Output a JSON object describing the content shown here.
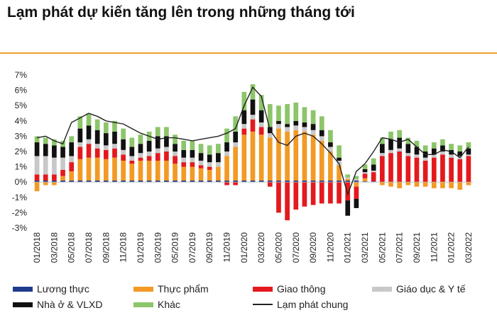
{
  "title": "Lạm phát dự kiến tăng lên trong những tháng tới",
  "accent": "#f0a030",
  "chart_data": {
    "type": "bar",
    "stacked": true,
    "ylim": [
      -3,
      7
    ],
    "yticks": [
      "-3%",
      "-2%",
      "-1%",
      "0%",
      "1%",
      "2%",
      "3%",
      "4%",
      "5%",
      "6%",
      "7%"
    ],
    "xtick_labels": [
      "01/2018",
      "03/2018",
      "05/2018",
      "07/2018",
      "09/2018",
      "11/2018",
      "01/2019",
      "03/2019",
      "05/2019",
      "07/2019",
      "09/2019",
      "11/2019",
      "01/2020",
      "03/2020",
      "05/2020",
      "07/2020",
      "09/2020",
      "11/2020",
      "01/2021",
      "03/2021",
      "05/2021",
      "07/2021",
      "09/2021",
      "11/2021",
      "01/2022",
      "03/2022"
    ],
    "categories": [
      "01/2018",
      "02/2018",
      "03/2018",
      "04/2018",
      "05/2018",
      "06/2018",
      "07/2018",
      "08/2018",
      "09/2018",
      "10/2018",
      "11/2018",
      "12/2018",
      "01/2019",
      "02/2019",
      "03/2019",
      "04/2019",
      "05/2019",
      "06/2019",
      "07/2019",
      "08/2019",
      "09/2019",
      "10/2019",
      "11/2019",
      "12/2019",
      "01/2020",
      "02/2020",
      "03/2020",
      "04/2020",
      "05/2020",
      "06/2020",
      "07/2020",
      "08/2020",
      "09/2020",
      "10/2020",
      "11/2020",
      "12/2020",
      "01/2021",
      "02/2021",
      "03/2021",
      "04/2021",
      "05/2021",
      "06/2021",
      "07/2021",
      "08/2021",
      "09/2021",
      "10/2021",
      "11/2021",
      "12/2021",
      "01/2022",
      "02/2022",
      "03/2022"
    ],
    "series": [
      {
        "name": "Lương thực",
        "color": "#1f3b8c",
        "values": [
          0.1,
          0.1,
          0.1,
          0.1,
          0.1,
          0.1,
          0.1,
          0.1,
          0.1,
          0.1,
          0.1,
          0.1,
          0.1,
          0.1,
          0.1,
          0.1,
          0.1,
          0.1,
          0.1,
          0.1,
          0.1,
          0.1,
          0.1,
          0.1,
          0.1,
          0.1,
          0.1,
          0.1,
          0.1,
          0.1,
          0.1,
          0.1,
          0.1,
          0.1,
          0.1,
          0.1,
          0.1,
          0.1,
          0.05,
          0.05,
          0,
          0,
          0,
          0,
          0,
          0,
          0,
          0,
          0,
          0,
          0
        ]
      },
      {
        "name": "Thực phẩm",
        "color": "#f29a24",
        "values": [
          -0.6,
          -0.2,
          -0.2,
          0.3,
          0.6,
          1.4,
          1.5,
          1.5,
          1.4,
          1.5,
          1.3,
          1.1,
          1.3,
          1.3,
          1.3,
          1.3,
          1.1,
          0.9,
          0.9,
          0.8,
          0.7,
          0.9,
          1.6,
          2.2,
          3.0,
          3.2,
          3.0,
          2.8,
          3.4,
          3.2,
          3.3,
          3.2,
          3.0,
          2.6,
          1.9,
          1.0,
          0.1,
          -0.3,
          0.2,
          0,
          -0.2,
          -0.3,
          -0.4,
          -0.2,
          -0.3,
          -0.3,
          -0.4,
          -0.4,
          -0.4,
          -0.5,
          -0.2
        ]
      },
      {
        "name": "Giao thông",
        "color": "#e3191e",
        "values": [
          0.4,
          0.4,
          0.4,
          0.4,
          0.6,
          0.8,
          0.9,
          0.6,
          0.6,
          0.6,
          0.4,
          0.2,
          0.2,
          0.3,
          0.5,
          0.6,
          0.5,
          0.3,
          0.3,
          0.2,
          0.2,
          0.0,
          -0.2,
          -0.2,
          0.4,
          0.8,
          0.5,
          -0.3,
          -2.0,
          -2.5,
          -1.8,
          -1.6,
          -1.5,
          -1.4,
          -1.4,
          -1.4,
          -1.2,
          -0.8,
          0.3,
          0.6,
          1.7,
          1.9,
          2.0,
          1.7,
          1.6,
          1.4,
          1.6,
          1.8,
          1.6,
          1.5,
          1.7
        ]
      },
      {
        "name": "Giáo dục & Y tế",
        "color": "#c8c8c8",
        "values": [
          1.2,
          1.2,
          1.1,
          0.8,
          0.4,
          0.3,
          0.3,
          0.3,
          0.3,
          0.3,
          0.3,
          0.3,
          0.3,
          0.3,
          0.3,
          0.3,
          0.3,
          0.3,
          0.3,
          0.3,
          0.3,
          0.3,
          0.3,
          0.3,
          0.3,
          0.3,
          0.3,
          0.3,
          0.3,
          0.3,
          0.3,
          0.3,
          0.3,
          0.3,
          0.3,
          0.3,
          0.1,
          0.1,
          0.1,
          0.1,
          0.2,
          0.2,
          0.2,
          0.2,
          0.2,
          0.2,
          0.2,
          0.2,
          0.2,
          0.2,
          0.1
        ]
      },
      {
        "name": "Nhà ở & VLXD",
        "color": "#111111",
        "values": [
          0.9,
          0.8,
          0.8,
          0.7,
          0.9,
          0.9,
          0.9,
          0.9,
          0.8,
          0.8,
          0.7,
          0.6,
          0.6,
          0.7,
          0.8,
          0.7,
          0.5,
          0.5,
          0.5,
          0.5,
          0.5,
          0.6,
          0.6,
          0.7,
          0.9,
          1.0,
          0.8,
          0.4,
          0.2,
          0.2,
          0.3,
          0.3,
          0.4,
          0.4,
          0.3,
          0.2,
          -1.0,
          -0.6,
          0.2,
          0.4,
          0.6,
          0.7,
          0.7,
          0.6,
          0.5,
          0.4,
          0.4,
          0.4,
          0.3,
          0.3,
          0.4
        ]
      },
      {
        "name": "Khác",
        "color": "#8cc56a",
        "values": [
          0.4,
          0.4,
          0.4,
          0.4,
          0.4,
          0.8,
          0.8,
          0.7,
          0.7,
          0.7,
          0.7,
          0.6,
          0.6,
          0.6,
          0.6,
          0.6,
          0.6,
          0.6,
          0.6,
          0.6,
          0.6,
          0.6,
          0.9,
          1.0,
          1.2,
          1.0,
          1.0,
          1.5,
          1.0,
          1.3,
          1.2,
          1.0,
          0.9,
          0.9,
          0.8,
          0.8,
          0.2,
          0.2,
          0.3,
          0.4,
          0.4,
          0.5,
          0.5,
          0.4,
          0.4,
          0.4,
          0.4,
          0.4,
          0.4,
          0.4,
          0.4
        ]
      }
    ],
    "line": {
      "name": "Lạm phát chung",
      "color": "#222222",
      "values": [
        2.9,
        3.0,
        2.7,
        2.5,
        3.9,
        4.2,
        4.5,
        4.3,
        4.0,
        3.9,
        3.8,
        3.5,
        3.2,
        3.0,
        2.8,
        2.9,
        2.9,
        2.8,
        2.7,
        2.8,
        2.9,
        3.0,
        3.2,
        3.5,
        5.0,
        6.2,
        5.6,
        3.4,
        2.6,
        2.4,
        3.0,
        3.2,
        3.0,
        2.5,
        1.9,
        1.2,
        -0.8,
        0.7,
        1.2,
        2.0,
        2.9,
        2.8,
        2.6,
        2.8,
        2.3,
        1.8,
        1.8,
        2.1,
        2.0,
        1.6,
        2.3
      ]
    }
  },
  "legend": {
    "items": [
      "Lương thực",
      "Thực phẩm",
      "Giao thông",
      "Giáo dục & Y tế",
      "Nhà ở & VLXD",
      "Khác",
      "Lạm phát chung"
    ]
  }
}
